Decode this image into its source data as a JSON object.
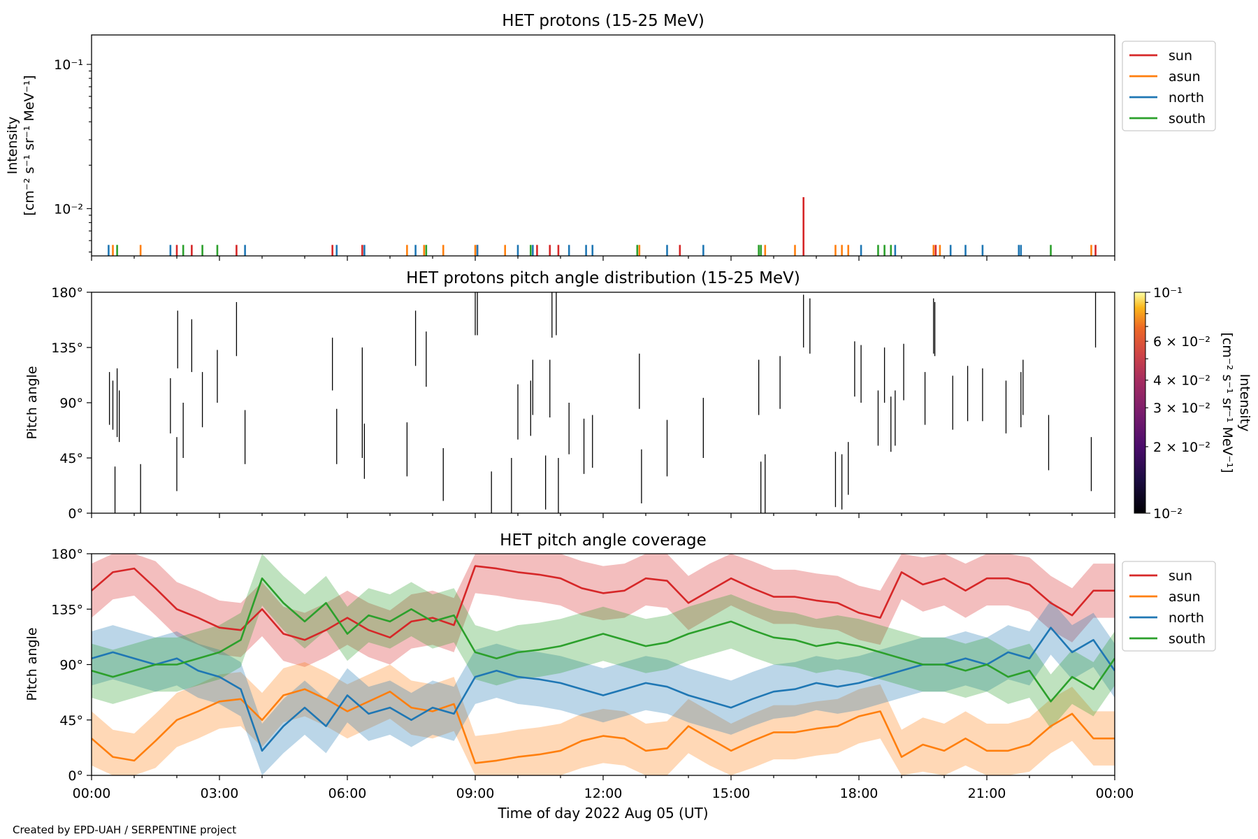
{
  "colors": {
    "sun": "#d62728",
    "asun": "#ff7f0e",
    "north": "#1f77b4",
    "south": "#2ca02c"
  },
  "footer": "Created by EPD-UAH / SERPENTINE project",
  "x_axis": {
    "label": "Time of day 2022 Aug 05 (UT)",
    "ticks": [
      "00:00",
      "03:00",
      "06:00",
      "09:00",
      "12:00",
      "15:00",
      "18:00",
      "21:00",
      "00:00"
    ],
    "range_hours": [
      0,
      24
    ]
  },
  "chart_data": [
    {
      "type": "line",
      "title": "HET protons (15-25 MeV)",
      "ylabel_lines": [
        "Intensity",
        "[cm⁻² s⁻¹ sr⁻¹ MeV⁻¹]"
      ],
      "yscale": "log",
      "ylim": [
        0.0047,
        0.16
      ],
      "ytick_labels": [
        {
          "value": 0.1,
          "label": "10⁻¹"
        },
        {
          "value": 0.01,
          "label": "10⁻²"
        }
      ],
      "legend": {
        "placement": "outside-top-right",
        "entries": [
          "sun",
          "asun",
          "north",
          "south"
        ]
      },
      "series": [
        {
          "name": "sun",
          "spikes": [
            {
              "t": 2.0,
              "v": 0.0056
            },
            {
              "t": 2.35,
              "v": 0.0056
            },
            {
              "t": 3.4,
              "v": 0.0056
            },
            {
              "t": 5.65,
              "v": 0.0056
            },
            {
              "t": 6.35,
              "v": 0.0056
            },
            {
              "t": 9.05,
              "v": 0.0056
            },
            {
              "t": 10.45,
              "v": 0.0056
            },
            {
              "t": 10.75,
              "v": 0.0056
            },
            {
              "t": 10.95,
              "v": 0.0056
            },
            {
              "t": 13.8,
              "v": 0.0056
            },
            {
              "t": 16.7,
              "v": 0.012
            },
            {
              "t": 19.8,
              "v": 0.0056
            },
            {
              "t": 23.55,
              "v": 0.0056
            }
          ]
        },
        {
          "name": "asun",
          "spikes": [
            {
              "t": 0.5,
              "v": 0.0056
            },
            {
              "t": 1.15,
              "v": 0.0056
            },
            {
              "t": 7.4,
              "v": 0.0056
            },
            {
              "t": 7.8,
              "v": 0.0056
            },
            {
              "t": 8.25,
              "v": 0.0056
            },
            {
              "t": 9.0,
              "v": 0.0056
            },
            {
              "t": 9.7,
              "v": 0.0056
            },
            {
              "t": 12.85,
              "v": 0.0056
            },
            {
              "t": 15.8,
              "v": 0.0056
            },
            {
              "t": 16.5,
              "v": 0.0056
            },
            {
              "t": 17.45,
              "v": 0.0056
            },
            {
              "t": 17.6,
              "v": 0.0056
            },
            {
              "t": 17.75,
              "v": 0.0056
            },
            {
              "t": 19.75,
              "v": 0.0056
            },
            {
              "t": 19.9,
              "v": 0.0056
            },
            {
              "t": 23.45,
              "v": 0.0056
            }
          ]
        },
        {
          "name": "north",
          "spikes": [
            {
              "t": 0.4,
              "v": 0.0056
            },
            {
              "t": 1.85,
              "v": 0.0056
            },
            {
              "t": 3.6,
              "v": 0.0056
            },
            {
              "t": 5.75,
              "v": 0.0056
            },
            {
              "t": 6.4,
              "v": 0.0056
            },
            {
              "t": 7.6,
              "v": 0.0056
            },
            {
              "t": 9.05,
              "v": 0.0056
            },
            {
              "t": 10.0,
              "v": 0.0056
            },
            {
              "t": 10.35,
              "v": 0.0056
            },
            {
              "t": 11.2,
              "v": 0.0056
            },
            {
              "t": 11.6,
              "v": 0.0056
            },
            {
              "t": 11.75,
              "v": 0.0056
            },
            {
              "t": 13.5,
              "v": 0.0056
            },
            {
              "t": 14.35,
              "v": 0.0056
            },
            {
              "t": 18.05,
              "v": 0.0056
            },
            {
              "t": 18.85,
              "v": 0.0056
            },
            {
              "t": 20.15,
              "v": 0.0056
            },
            {
              "t": 20.5,
              "v": 0.0056
            },
            {
              "t": 20.9,
              "v": 0.0056
            },
            {
              "t": 21.75,
              "v": 0.0056
            },
            {
              "t": 21.8,
              "v": 0.0056
            }
          ]
        },
        {
          "name": "south",
          "spikes": [
            {
              "t": 0.6,
              "v": 0.0056
            },
            {
              "t": 2.15,
              "v": 0.0056
            },
            {
              "t": 2.6,
              "v": 0.0056
            },
            {
              "t": 2.95,
              "v": 0.0056
            },
            {
              "t": 7.85,
              "v": 0.0056
            },
            {
              "t": 10.3,
              "v": 0.0056
            },
            {
              "t": 12.8,
              "v": 0.0056
            },
            {
              "t": 15.65,
              "v": 0.0056
            },
            {
              "t": 15.7,
              "v": 0.0056
            },
            {
              "t": 18.45,
              "v": 0.0056
            },
            {
              "t": 18.6,
              "v": 0.0056
            },
            {
              "t": 18.75,
              "v": 0.0056
            },
            {
              "t": 22.5,
              "v": 0.0056
            }
          ]
        }
      ]
    },
    {
      "type": "heatmap",
      "title": "HET protons pitch angle distribution (15-25 MeV)",
      "ylabel": "Pitch angle",
      "ylim": [
        0,
        180
      ],
      "ytick_labels": [
        "0°",
        "45°",
        "90°",
        "135°",
        "180°"
      ],
      "colorbar": {
        "label": "Intensity",
        "units_label": "[cm⁻² s⁻¹ sr⁻¹ MeV⁻¹]",
        "scale": "log",
        "range": [
          0.01,
          0.1
        ],
        "ticks": [
          {
            "value": 0.1,
            "label": "10⁻¹"
          },
          {
            "value": 0.06,
            "label": "6 × 10⁻²"
          },
          {
            "value": 0.04,
            "label": "4 × 10⁻²"
          },
          {
            "value": 0.03,
            "label": "3 × 10⁻²"
          },
          {
            "value": 0.02,
            "label": "2 × 10⁻²"
          },
          {
            "value": 0.01,
            "label": "10⁻²"
          }
        ]
      },
      "segments": [
        {
          "t": 0.42,
          "lo": 72,
          "hi": 115
        },
        {
          "t": 0.5,
          "lo": 68,
          "hi": 108
        },
        {
          "t": 0.55,
          "lo": 0,
          "hi": 38
        },
        {
          "t": 0.6,
          "lo": 62,
          "hi": 118
        },
        {
          "t": 0.65,
          "lo": 58,
          "hi": 100
        },
        {
          "t": 1.15,
          "lo": 0,
          "hi": 40
        },
        {
          "t": 1.85,
          "lo": 65,
          "hi": 110
        },
        {
          "t": 2.0,
          "lo": 18,
          "hi": 62
        },
        {
          "t": 2.02,
          "lo": 118,
          "hi": 165
        },
        {
          "t": 2.15,
          "lo": 45,
          "hi": 90
        },
        {
          "t": 2.35,
          "lo": 115,
          "hi": 158
        },
        {
          "t": 2.6,
          "lo": 70,
          "hi": 115
        },
        {
          "t": 2.95,
          "lo": 90,
          "hi": 133
        },
        {
          "t": 3.4,
          "lo": 128,
          "hi": 172
        },
        {
          "t": 3.6,
          "lo": 40,
          "hi": 84
        },
        {
          "t": 5.65,
          "lo": 100,
          "hi": 143
        },
        {
          "t": 5.75,
          "lo": 40,
          "hi": 85
        },
        {
          "t": 6.35,
          "lo": 45,
          "hi": 135
        },
        {
          "t": 6.4,
          "lo": 28,
          "hi": 73
        },
        {
          "t": 7.4,
          "lo": 30,
          "hi": 74
        },
        {
          "t": 7.6,
          "lo": 120,
          "hi": 165
        },
        {
          "t": 7.85,
          "lo": 103,
          "hi": 148
        },
        {
          "t": 8.25,
          "lo": 10,
          "hi": 53
        },
        {
          "t": 9.0,
          "lo": 145,
          "hi": 180
        },
        {
          "t": 9.05,
          "lo": 145,
          "hi": 180
        },
        {
          "t": 9.38,
          "lo": 0,
          "hi": 34
        },
        {
          "t": 9.85,
          "lo": 0,
          "hi": 45
        },
        {
          "t": 10.0,
          "lo": 60,
          "hi": 105
        },
        {
          "t": 10.3,
          "lo": 63,
          "hi": 108
        },
        {
          "t": 10.35,
          "lo": 80,
          "hi": 125
        },
        {
          "t": 10.65,
          "lo": 3,
          "hi": 47
        },
        {
          "t": 10.75,
          "lo": 78,
          "hi": 125
        },
        {
          "t": 10.8,
          "lo": 143,
          "hi": 180
        },
        {
          "t": 10.9,
          "lo": 145,
          "hi": 180
        },
        {
          "t": 10.95,
          "lo": 0,
          "hi": 45
        },
        {
          "t": 11.2,
          "lo": 48,
          "hi": 90
        },
        {
          "t": 11.55,
          "lo": 32,
          "hi": 77
        },
        {
          "t": 11.75,
          "lo": 37,
          "hi": 80
        },
        {
          "t": 12.85,
          "lo": 85,
          "hi": 130
        },
        {
          "t": 12.9,
          "lo": 8,
          "hi": 52
        },
        {
          "t": 13.5,
          "lo": 30,
          "hi": 76
        },
        {
          "t": 14.35,
          "lo": 45,
          "hi": 94
        },
        {
          "t": 15.65,
          "lo": 80,
          "hi": 125
        },
        {
          "t": 15.7,
          "lo": 0,
          "hi": 42
        },
        {
          "t": 15.8,
          "lo": 0,
          "hi": 48
        },
        {
          "t": 16.15,
          "lo": 85,
          "hi": 128
        },
        {
          "t": 16.7,
          "lo": 135,
          "hi": 178
        },
        {
          "t": 16.85,
          "lo": 130,
          "hi": 175
        },
        {
          "t": 17.45,
          "lo": 5,
          "hi": 50
        },
        {
          "t": 17.6,
          "lo": 3,
          "hi": 48
        },
        {
          "t": 17.75,
          "lo": 15,
          "hi": 58
        },
        {
          "t": 17.9,
          "lo": 95,
          "hi": 140
        },
        {
          "t": 18.05,
          "lo": 90,
          "hi": 137
        },
        {
          "t": 18.45,
          "lo": 55,
          "hi": 100
        },
        {
          "t": 18.6,
          "lo": 90,
          "hi": 135
        },
        {
          "t": 18.75,
          "lo": 50,
          "hi": 95
        },
        {
          "t": 18.85,
          "lo": 55,
          "hi": 100
        },
        {
          "t": 19.05,
          "lo": 92,
          "hi": 138
        },
        {
          "t": 19.55,
          "lo": 72,
          "hi": 115
        },
        {
          "t": 20.2,
          "lo": 68,
          "hi": 112
        },
        {
          "t": 20.55,
          "lo": 75,
          "hi": 120
        },
        {
          "t": 20.9,
          "lo": 75,
          "hi": 118
        },
        {
          "t": 21.45,
          "lo": 65,
          "hi": 108
        },
        {
          "t": 21.8,
          "lo": 70,
          "hi": 115
        },
        {
          "t": 21.85,
          "lo": 80,
          "hi": 125
        },
        {
          "t": 22.45,
          "lo": 35,
          "hi": 80
        },
        {
          "t": 23.45,
          "lo": 18,
          "hi": 62
        },
        {
          "t": 23.55,
          "lo": 135,
          "hi": 180
        },
        {
          "t": 19.75,
          "lo": 130,
          "hi": 175
        },
        {
          "t": 19.78,
          "lo": 128,
          "hi": 172
        }
      ]
    },
    {
      "type": "area",
      "title": "HET pitch angle coverage",
      "ylabel": "Pitch angle",
      "ylim": [
        0,
        180
      ],
      "ytick_labels": [
        "0°",
        "45°",
        "90°",
        "135°",
        "180°"
      ],
      "legend": {
        "placement": "outside-top-right",
        "entries": [
          "sun",
          "asun",
          "north",
          "south"
        ]
      },
      "x": [
        0,
        0.5,
        1,
        1.5,
        2,
        2.5,
        3,
        3.5,
        4,
        4.5,
        5,
        5.5,
        6,
        6.5,
        7,
        7.5,
        8,
        8.5,
        9,
        9.5,
        10,
        10.5,
        11,
        11.5,
        12,
        12.5,
        13,
        13.5,
        14,
        14.5,
        15,
        15.5,
        16,
        16.5,
        17,
        17.5,
        18,
        18.5,
        19,
        19.5,
        20,
        20.5,
        21,
        21.5,
        22,
        22.5,
        23,
        23.5,
        24
      ],
      "series": [
        {
          "name": "sun",
          "halfwidth": 22,
          "values": [
            150,
            165,
            168,
            152,
            135,
            128,
            120,
            118,
            135,
            115,
            110,
            118,
            128,
            118,
            112,
            125,
            128,
            122,
            170,
            168,
            165,
            163,
            160,
            152,
            148,
            150,
            160,
            158,
            140,
            150,
            160,
            152,
            145,
            145,
            142,
            140,
            132,
            128,
            165,
            155,
            160,
            150,
            160,
            160,
            155,
            140,
            130,
            150,
            150
          ]
        },
        {
          "name": "asun",
          "halfwidth": 22,
          "values": [
            30,
            15,
            12,
            28,
            45,
            52,
            60,
            62,
            45,
            65,
            70,
            62,
            52,
            60,
            68,
            55,
            52,
            58,
            10,
            12,
            15,
            17,
            20,
            28,
            32,
            30,
            20,
            22,
            40,
            30,
            20,
            28,
            35,
            35,
            38,
            40,
            48,
            52,
            15,
            25,
            20,
            30,
            20,
            20,
            25,
            40,
            50,
            30,
            30
          ]
        },
        {
          "name": "north",
          "halfwidth": 22,
          "values": [
            95,
            100,
            95,
            90,
            95,
            85,
            80,
            70,
            20,
            40,
            55,
            40,
            65,
            50,
            55,
            45,
            55,
            50,
            80,
            85,
            80,
            78,
            75,
            70,
            65,
            70,
            75,
            72,
            65,
            60,
            55,
            62,
            68,
            70,
            75,
            72,
            75,
            80,
            85,
            90,
            90,
            95,
            90,
            100,
            95,
            120,
            100,
            110,
            85
          ]
        },
        {
          "name": "south",
          "halfwidth": 22,
          "values": [
            85,
            80,
            85,
            90,
            90,
            95,
            100,
            110,
            160,
            140,
            125,
            140,
            115,
            130,
            125,
            135,
            125,
            130,
            100,
            95,
            100,
            102,
            105,
            110,
            115,
            110,
            105,
            108,
            115,
            120,
            125,
            118,
            112,
            110,
            105,
            108,
            105,
            100,
            95,
            90,
            90,
            85,
            90,
            80,
            85,
            60,
            80,
            70,
            95
          ]
        }
      ]
    }
  ]
}
